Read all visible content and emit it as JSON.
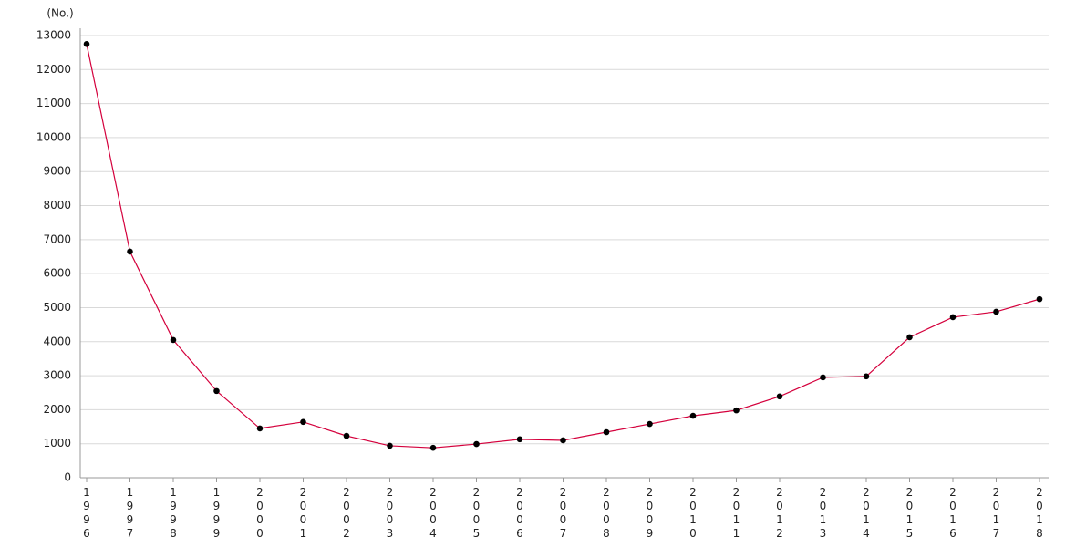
{
  "chart_data": {
    "type": "line",
    "y_label": "(No.)",
    "categories": [
      "1996",
      "1997",
      "1998",
      "1999",
      "2000",
      "2001",
      "2002",
      "2003",
      "2004",
      "2005",
      "2006",
      "2007",
      "2008",
      "2009",
      "2010",
      "2011",
      "2012",
      "2013",
      "2014",
      "2015",
      "2016",
      "2017",
      "2018"
    ],
    "values": [
      12750,
      6650,
      4050,
      2550,
      1450,
      1640,
      1230,
      940,
      880,
      990,
      1130,
      1100,
      1340,
      1580,
      1820,
      1980,
      2390,
      2950,
      2980,
      4130,
      4720,
      4880,
      5250
    ],
    "color": "#d4003c",
    "marker_color": "#000000",
    "ylim": [
      0,
      13000
    ],
    "yticks": [
      0,
      1000,
      2000,
      3000,
      4000,
      5000,
      6000,
      7000,
      8000,
      9000,
      10000,
      11000,
      12000,
      13000
    ],
    "grid": true
  }
}
